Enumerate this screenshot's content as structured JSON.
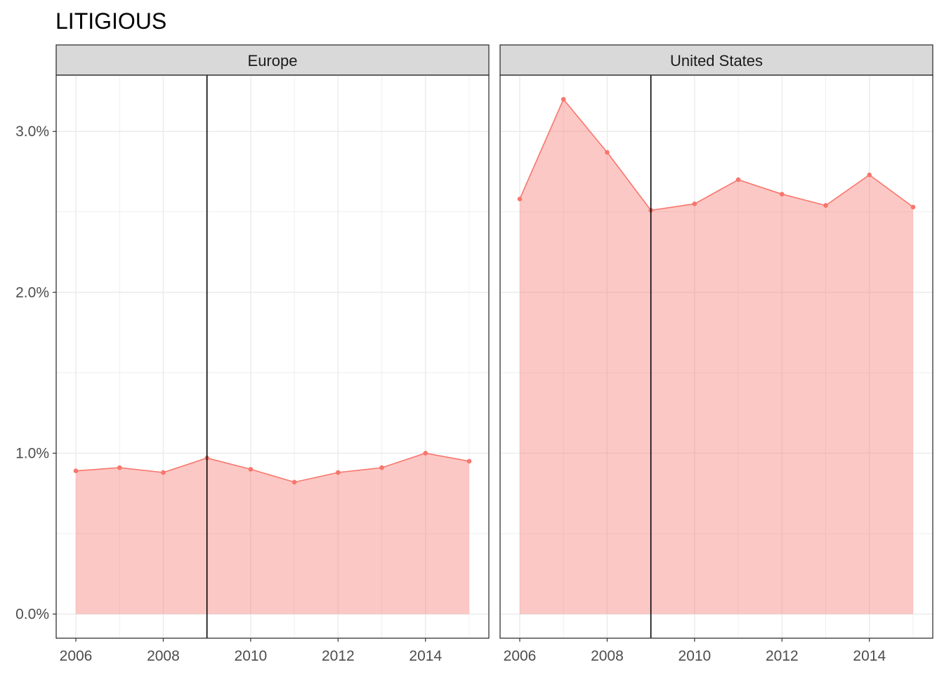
{
  "chart_data": {
    "type": "area",
    "title": "LITIGIOUS",
    "facets": [
      "Europe",
      "United States"
    ],
    "x": [
      2006,
      2007,
      2008,
      2009,
      2010,
      2011,
      2012,
      2013,
      2014,
      2015
    ],
    "x_ticks": [
      "2006",
      "2008",
      "2010",
      "2012",
      "2014"
    ],
    "y_ticks": [
      "0.0%",
      "1.0%",
      "2.0%",
      "3.0%"
    ],
    "ylim": [
      -0.0015,
      0.0335
    ],
    "vline_x": 2009,
    "grid": true,
    "series": [
      {
        "facet": "Europe",
        "values": [
          0.0089,
          0.0091,
          0.0088,
          0.0097,
          0.009,
          0.0082,
          0.0088,
          0.0091,
          0.01,
          0.0095
        ]
      },
      {
        "facet": "United States",
        "values": [
          0.0258,
          0.032,
          0.0287,
          0.0251,
          0.0255,
          0.027,
          0.0261,
          0.0254,
          0.0273,
          0.0253
        ]
      }
    ],
    "colors": {
      "line": "#F8766D",
      "fill": "#F8766D",
      "strip": "#D9D9D9",
      "vline": "#000000"
    }
  }
}
